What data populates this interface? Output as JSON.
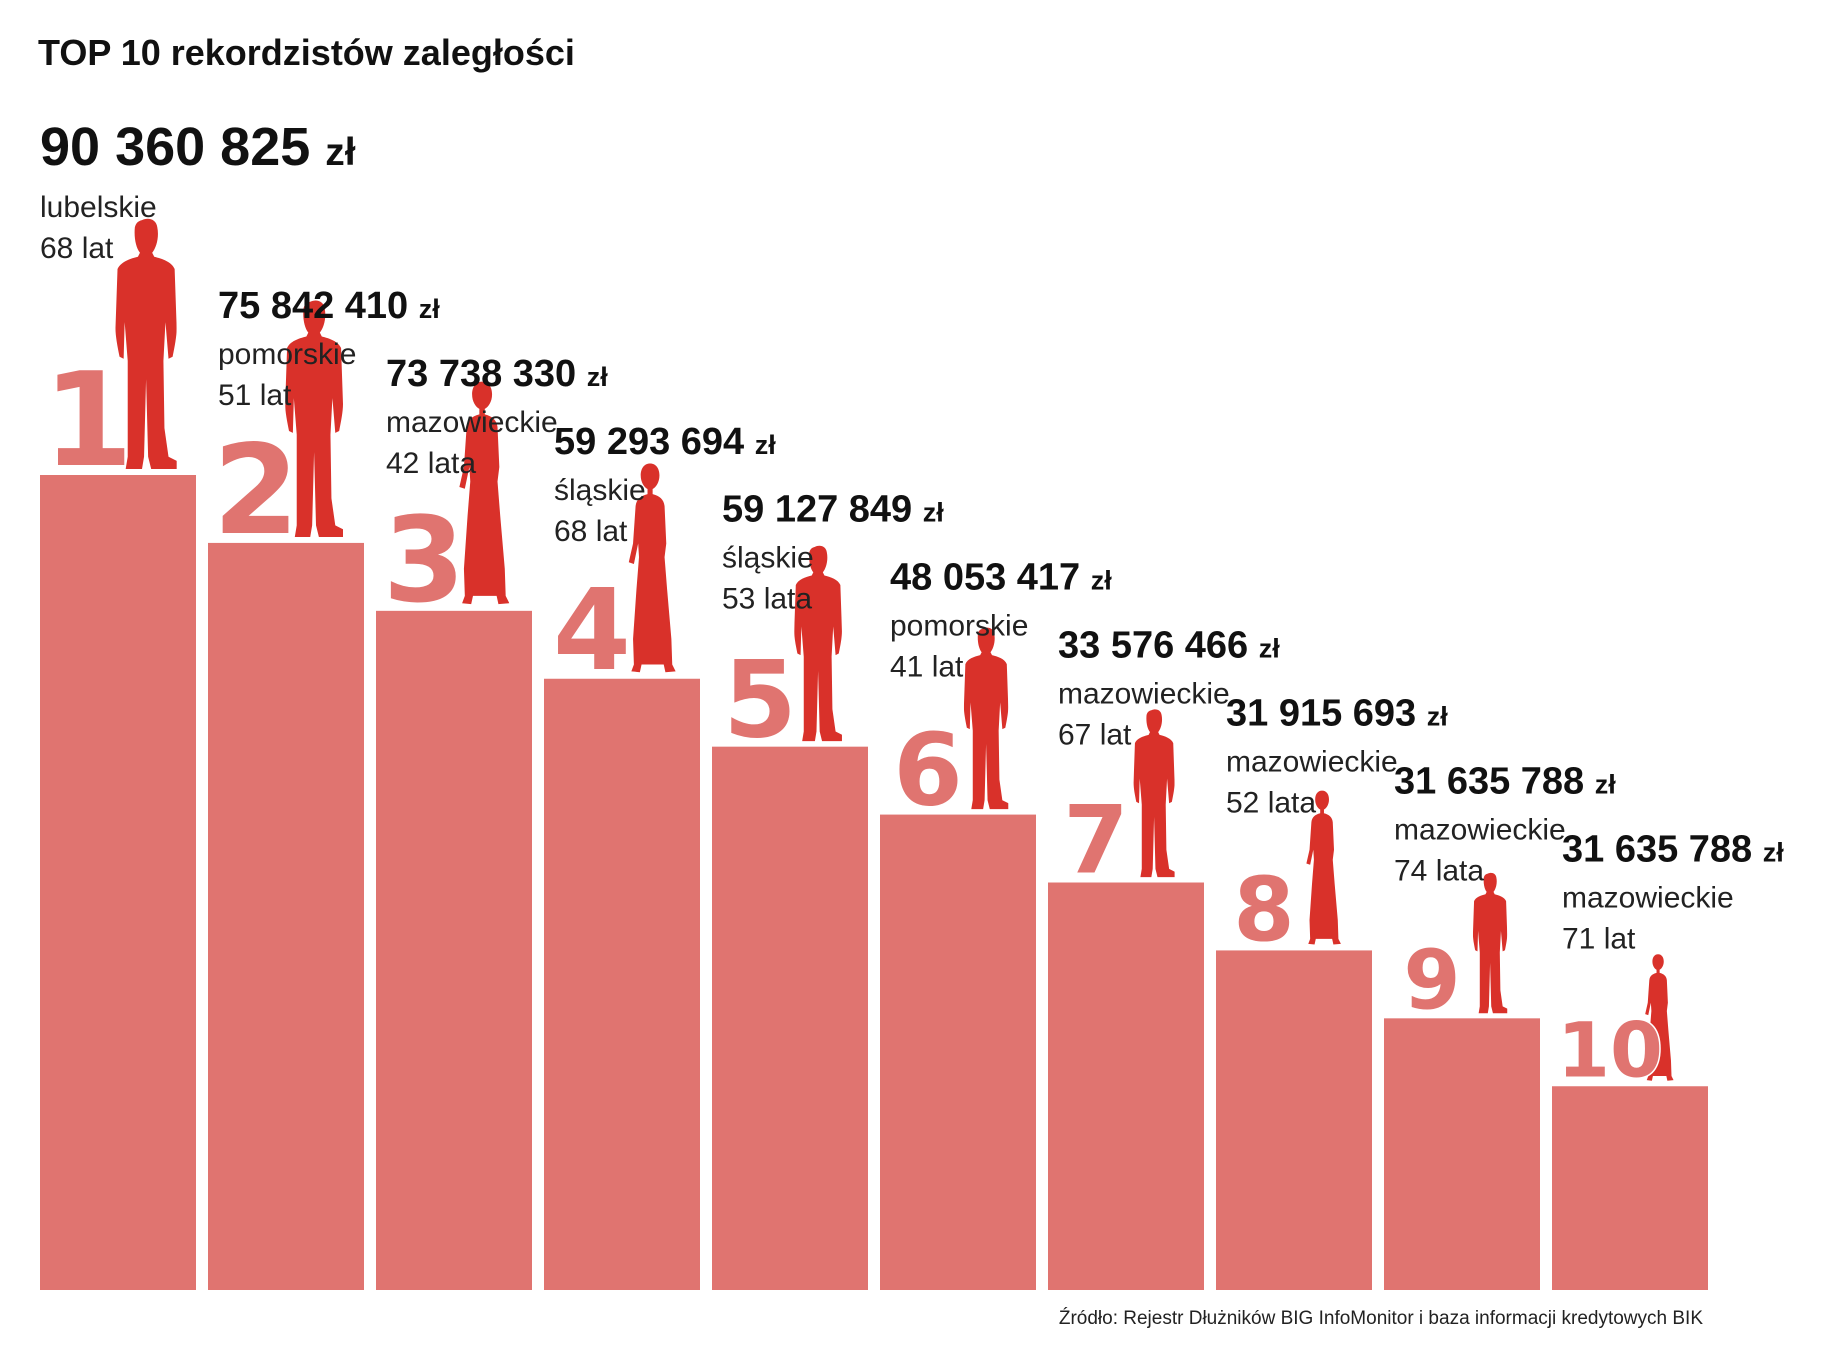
{
  "chart_data": {
    "type": "bar",
    "title": "TOP 10 rekordzistów zaległości",
    "currency": "zł",
    "categories": [
      "1",
      "2",
      "3",
      "4",
      "5",
      "6",
      "7",
      "8",
      "9",
      "10"
    ],
    "values": [
      90360825,
      75842410,
      73738330,
      59293694,
      59127849,
      48053417,
      33576466,
      31915693,
      31635788,
      31635788
    ],
    "value_labels": [
      "90 360 825",
      "75 842 410",
      "73 738 330",
      "59 293 694",
      "59 127 849",
      "48 053 417",
      "33 576 466",
      "31 915 693",
      "31 635 788",
      "31 635 788"
    ],
    "regions": [
      "lubelskie",
      "pomorskie",
      "mazowieckie",
      "śląskie",
      "śląskie",
      "pomorskie",
      "mazowieckie",
      "mazowieckie",
      "mazowieckie",
      "mazowieckie"
    ],
    "ages": [
      "68 lat",
      "51 lat",
      "42 lata",
      "68 lat",
      "53 lata",
      "41 lat",
      "67 lat",
      "52 lata",
      "74 lata",
      "71 lat"
    ],
    "genders": [
      "male",
      "male",
      "female",
      "female",
      "male",
      "male",
      "male",
      "female",
      "male",
      "female"
    ],
    "source": "Źródło: Rejestr Dłużników BIG InfoMonitor i baza informacji kredytowych BIK"
  },
  "colors": {
    "bar": "#e07470",
    "rank": "#e07470",
    "figure": "#d9312a",
    "text": "#111111"
  },
  "icons": {
    "male": "man-silhouette-icon",
    "female": "woman-silhouette-icon"
  }
}
